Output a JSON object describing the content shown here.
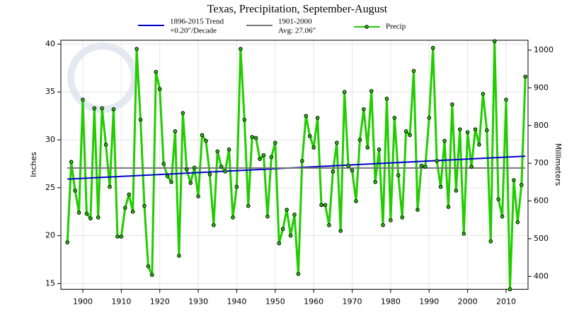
{
  "chart_data": {
    "type": "line",
    "title": "Texas, Precipitation, September-August",
    "ylabel": "Inches",
    "y2label": "Millimeters",
    "x": [
      1896,
      1897,
      1898,
      1899,
      1900,
      1901,
      1902,
      1903,
      1904,
      1905,
      1906,
      1907,
      1908,
      1909,
      1910,
      1911,
      1912,
      1913,
      1914,
      1915,
      1916,
      1917,
      1918,
      1919,
      1920,
      1921,
      1922,
      1923,
      1924,
      1925,
      1926,
      1927,
      1928,
      1929,
      1930,
      1931,
      1932,
      1933,
      1934,
      1935,
      1936,
      1937,
      1938,
      1939,
      1940,
      1941,
      1942,
      1943,
      1944,
      1945,
      1946,
      1947,
      1948,
      1949,
      1950,
      1951,
      1952,
      1953,
      1954,
      1955,
      1956,
      1957,
      1958,
      1959,
      1960,
      1961,
      1962,
      1963,
      1964,
      1965,
      1966,
      1967,
      1968,
      1969,
      1970,
      1971,
      1972,
      1973,
      1974,
      1975,
      1976,
      1977,
      1978,
      1979,
      1980,
      1981,
      1982,
      1983,
      1984,
      1985,
      1986,
      1987,
      1988,
      1989,
      1990,
      1991,
      1992,
      1993,
      1994,
      1995,
      1996,
      1997,
      1998,
      1999,
      2000,
      2001,
      2002,
      2003,
      2004,
      2005,
      2006,
      2007,
      2008,
      2009,
      2010,
      2011,
      2012,
      2013,
      2014,
      2015
    ],
    "series": [
      {
        "name": "Precip",
        "color": "#22cc00",
        "values": [
          19.3,
          27.7,
          24.7,
          22.4,
          34.2,
          22.3,
          21.8,
          33.3,
          21.9,
          33.3,
          29.5,
          25.1,
          33.2,
          19.9,
          19.9,
          22.9,
          24.3,
          22.5,
          39.5,
          32.1,
          23.1,
          16.8,
          15.9,
          37.1,
          35.3,
          27.5,
          26.2,
          25.6,
          30.9,
          17.9,
          32.8,
          26.9,
          25.5,
          27.1,
          24.1,
          30.5,
          29.9,
          26.4,
          21.1,
          28.8,
          27.2,
          26.7,
          29.0,
          21.9,
          25.1,
          39.5,
          32.1,
          23.1,
          30.3,
          30.2,
          28.0,
          28.4,
          22.0,
          28.2,
          29.7,
          19.2,
          20.7,
          22.7,
          20.0,
          22.2,
          16.0,
          27.8,
          32.5,
          30.4,
          29.2,
          32.3,
          23.2,
          23.2,
          21.1,
          26.7,
          29.7,
          20.5,
          35.0,
          27.3,
          26.8,
          23.6,
          30.0,
          33.2,
          29.2,
          35.1,
          25.6,
          29.0,
          21.1,
          34.3,
          21.6,
          32.3,
          26.3,
          21.9,
          30.9,
          30.5,
          37.2,
          22.7,
          27.3,
          27.2,
          32.3,
          39.6,
          27.8,
          25.1,
          29.9,
          23.0,
          33.7,
          24.7,
          31.1,
          20.2,
          30.8,
          27.2,
          31.1,
          29.5,
          34.8,
          31.0,
          19.4,
          40.3,
          23.8,
          22.0,
          34.2,
          14.4,
          25.8,
          21.4,
          25.3,
          36.6
        ]
      },
      {
        "name": "1896-2015 Trend",
        "subtitle": "+0.20\"/Decade",
        "color": "#0000cc",
        "x": [
          1896,
          2015
        ],
        "values": [
          25.9,
          28.3
        ]
      },
      {
        "name": "1901-2000",
        "subtitle": "Avg: 27.06\"",
        "color": "#777777",
        "x": [
          1896,
          2015
        ],
        "values": [
          27.06,
          27.06
        ]
      }
    ],
    "xlim": [
      1894.3,
      2015.7
    ],
    "xticks": [
      1900,
      1910,
      1920,
      1930,
      1940,
      1950,
      1960,
      1970,
      1980,
      1990,
      2000,
      2010
    ],
    "ylim": [
      14.4,
      40.4
    ],
    "yticks": [
      15,
      20,
      25,
      30,
      35,
      40
    ],
    "y2lim": [
      365.76,
      1026.16
    ],
    "y2ticks": [
      400,
      500,
      600,
      700,
      800,
      900,
      1000
    ],
    "grid": true
  }
}
